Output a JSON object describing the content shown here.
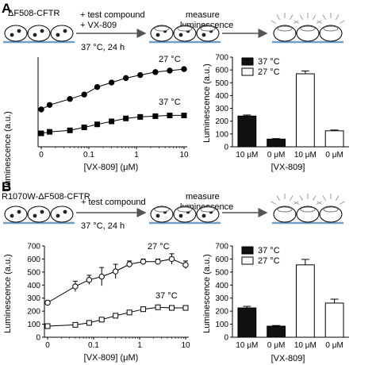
{
  "panels": [
    {
      "letter": "A",
      "construct": "ΔF508-CFTR",
      "step1": [
        "+ test compound",
        "+ VX-809"
      ],
      "step1_condition": "37 °C, 24 h",
      "step2": [
        "measure",
        "luminescence"
      ]
    },
    {
      "letter": "B",
      "construct": "R1070W-ΔF508-CFTR",
      "step1": [
        "+ test compound"
      ],
      "step1_condition": "37 °C, 24 h",
      "step2": [
        "measure",
        "luminescence"
      ]
    }
  ],
  "colors": {
    "membrane": "#6f9fc4",
    "arrow": "#555555",
    "cell_line": "#000000"
  },
  "chart_data": [
    {
      "id": "A-line",
      "type": "line",
      "x_scale": "log-with-zero",
      "xlabel": "[VX-809] (μM)",
      "ylabel": "Luminescence (a.u.)",
      "x_ticks": [
        "0",
        "0.1",
        "1",
        "10"
      ],
      "series": [
        {
          "name": "27 °C",
          "marker": "filled-circle",
          "x": [
            0,
            0.015,
            0.04,
            0.08,
            0.15,
            0.3,
            0.6,
            1.2,
            2.5,
            5,
            10
          ],
          "y": [
            2.5,
            2.8,
            3.2,
            3.5,
            4.0,
            4.3,
            4.6,
            4.8,
            5.0,
            5.1,
            5.2
          ]
        },
        {
          "name": "37 °C",
          "marker": "filled-square",
          "x": [
            0,
            0.015,
            0.04,
            0.08,
            0.15,
            0.3,
            0.6,
            1.2,
            2.5,
            5,
            10
          ],
          "y": [
            0.9,
            1.0,
            1.1,
            1.3,
            1.5,
            1.7,
            1.9,
            2.0,
            2.05,
            2.1,
            2.1
          ]
        }
      ],
      "ylim": [
        0,
        6
      ]
    },
    {
      "id": "A-bar",
      "type": "bar",
      "ylabel": "Luminescence (a.u.)",
      "xlabel": "[VX-809]",
      "categories": [
        "10 μM",
        "0 μM",
        "10 μM",
        "0 μM"
      ],
      "series_of_bar": [
        "37 °C",
        "37 °C",
        "27 °C",
        "27 °C"
      ],
      "values": [
        240,
        60,
        570,
        125
      ],
      "errors": [
        8,
        4,
        22,
        6
      ],
      "legend": [
        "37 °C",
        "27 °C"
      ],
      "y_ticks": [
        "0",
        "100",
        "200",
        "300",
        "400",
        "500",
        "600",
        "700"
      ],
      "ylim": [
        0,
        700
      ]
    },
    {
      "id": "B-line",
      "type": "line",
      "x_scale": "log-with-zero",
      "xlabel": "[VX-809] (μM)",
      "ylabel": "Luminescence (a.u.)",
      "x_ticks": [
        "0",
        "0.1",
        "1",
        "10"
      ],
      "y_ticks": [
        "0",
        "100",
        "200",
        "300",
        "400",
        "500",
        "600",
        "700"
      ],
      "series": [
        {
          "name": "27 °C",
          "marker": "open-circle",
          "x": [
            0,
            0.04,
            0.08,
            0.15,
            0.3,
            0.6,
            1.2,
            2.5,
            5,
            10
          ],
          "y": [
            265,
            390,
            440,
            465,
            505,
            560,
            580,
            580,
            600,
            555
          ],
          "errors": [
            15,
            40,
            35,
            70,
            55,
            25,
            20,
            20,
            40,
            30
          ]
        },
        {
          "name": "37 °C",
          "marker": "open-square",
          "x": [
            0,
            0.04,
            0.08,
            0.15,
            0.3,
            0.6,
            1.2,
            2.5,
            5,
            10
          ],
          "y": [
            85,
            95,
            110,
            135,
            165,
            190,
            215,
            230,
            225,
            225
          ],
          "errors": [
            5,
            5,
            5,
            6,
            6,
            6,
            6,
            8,
            6,
            6
          ]
        }
      ],
      "ylim": [
        0,
        700
      ]
    },
    {
      "id": "B-bar",
      "type": "bar",
      "ylabel": "Luminescence (a.u.)",
      "xlabel": "[VX-809]",
      "categories": [
        "10 μM",
        "0 μM",
        "10 μM",
        "0 μM"
      ],
      "series_of_bar": [
        "37 °C",
        "37 °C",
        "27 °C",
        "27 °C"
      ],
      "values": [
        225,
        85,
        555,
        262
      ],
      "errors": [
        12,
        5,
        42,
        30
      ],
      "legend": [
        "37 °C",
        "27 °C"
      ],
      "y_ticks": [
        "0",
        "100",
        "200",
        "300",
        "400",
        "500",
        "600",
        "700"
      ],
      "ylim": [
        0,
        700
      ]
    }
  ]
}
